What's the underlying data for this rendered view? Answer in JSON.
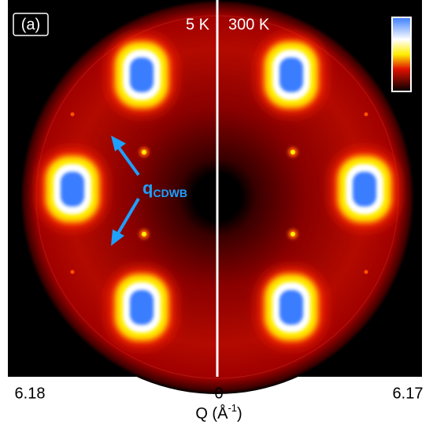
{
  "figure": {
    "panel_label": "(a)",
    "left_temperature": "5 K",
    "right_temperature": "300 K",
    "annotation": {
      "main": "q",
      "sub": "CDWB"
    },
    "tick_labels": [
      "6.18",
      "0",
      "6.17"
    ],
    "axis_label": {
      "main": "Q (Å",
      "sup": "-1",
      "end": ")"
    }
  }
}
